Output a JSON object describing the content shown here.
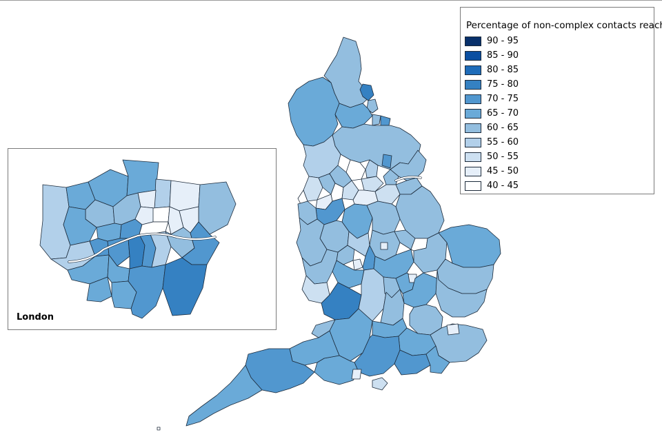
{
  "legend": {
    "title": "Percentage of non-complex contacts reached",
    "items": [
      {
        "label": "90 - 95",
        "color": "#08306b"
      },
      {
        "label": "85 - 90",
        "color": "#0b4fa1"
      },
      {
        "label": "80 - 85",
        "color": "#1e6cb9"
      },
      {
        "label": "75 - 80",
        "color": "#3581c2"
      },
      {
        "label": "70 - 75",
        "color": "#5197cf"
      },
      {
        "label": "65 - 70",
        "color": "#6aaad8"
      },
      {
        "label": "60 - 65",
        "color": "#93bedf"
      },
      {
        "label": "55 - 60",
        "color": "#b2d0ea"
      },
      {
        "label": "50 - 55",
        "color": "#cde0f1"
      },
      {
        "label": "45 - 50",
        "color": "#e6eff9"
      },
      {
        "label": "40 - 45",
        "color": "#ffffff"
      }
    ]
  },
  "inset": {
    "label": "London"
  }
}
